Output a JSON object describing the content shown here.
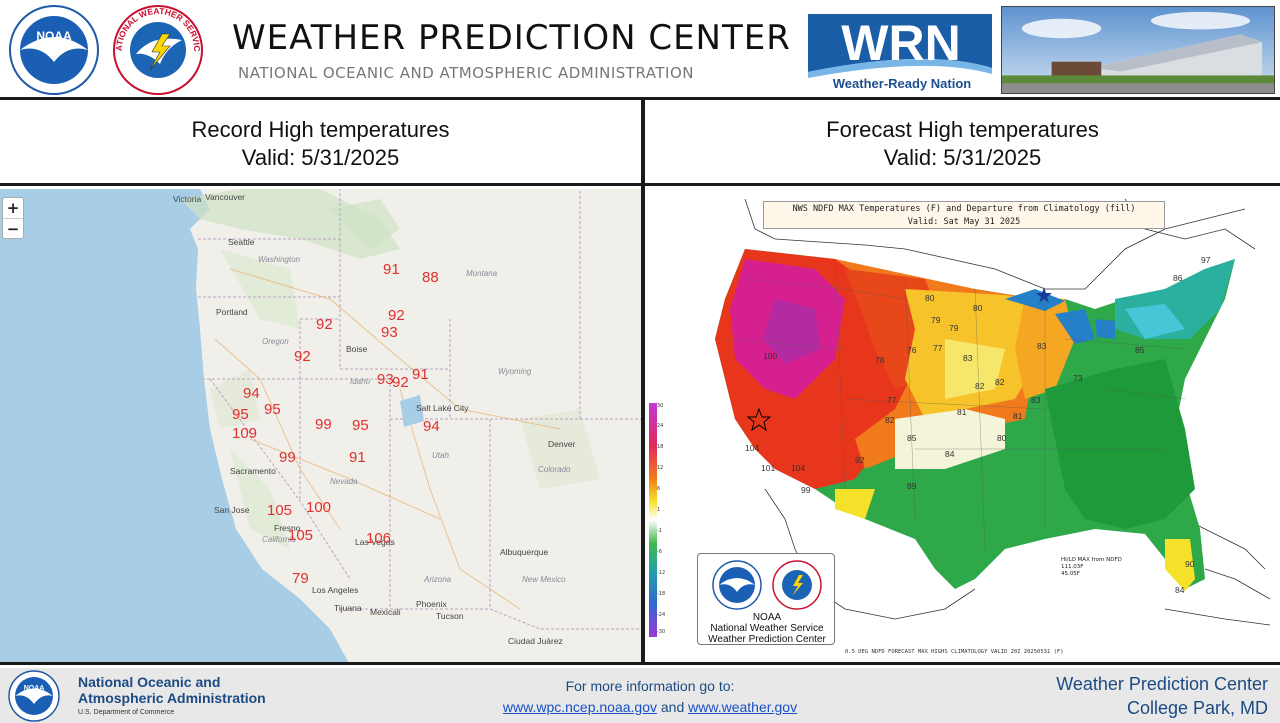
{
  "header": {
    "title": "WEATHER PREDICTION CENTER",
    "subtitle": "NATIONAL OCEANIC AND ATMOSPHERIC ADMINISTRATION",
    "noaa_logo_text": "NOAA",
    "nws_logo_text": "NATIONAL WEATHER SERVICE",
    "wrn_logo_text": "WRN",
    "wrn_tagline": "Weather-Ready Nation"
  },
  "left_panel": {
    "title_line1": "Record High temperatures",
    "title_line2": "Valid: 5/31/2025",
    "zoom_in": "+",
    "zoom_out": "−",
    "records": [
      "91",
      "88",
      "92",
      "92",
      "93",
      "92",
      "93",
      "92",
      "91",
      "94",
      "95",
      "95",
      "109",
      "99",
      "95",
      "94",
      "99",
      "91",
      "105",
      "100",
      "105",
      "106",
      "79"
    ],
    "cities": [
      "Vancouver",
      "Victoria",
      "Seattle",
      "Portland",
      "Boise",
      "Salt Lake City",
      "Denver",
      "Sacramento",
      "San Jose",
      "Fresno",
      "Las Vegas",
      "Los Angeles",
      "Tijuana",
      "Mexicali",
      "Phoenix",
      "Tucson",
      "Albuquerque",
      "Ciudad Juárez"
    ],
    "states": [
      "Washington",
      "Montana",
      "Oregon",
      "Idaho",
      "Wyoming",
      "Nevada",
      "Utah",
      "Colorado",
      "California",
      "Arizona",
      "New Mexico"
    ]
  },
  "right_panel": {
    "title_line1": "Forecast High temperatures",
    "title_line2": "Valid: 5/31/2025",
    "chart_title_line1": "NWS NDFD MAX Temperatures (F) and Departure from Climatology (fill)",
    "chart_title_line2": "Valid: Sat May 31 2025",
    "forecast_values": [
      "80",
      "79",
      "76",
      "77",
      "78",
      "77",
      "83",
      "82",
      "82",
      "81",
      "81",
      "83",
      "79",
      "80",
      "85",
      "82",
      "84",
      "100",
      "104",
      "101",
      "104",
      "99",
      "89",
      "92",
      "86",
      "90",
      "97",
      "85",
      "84",
      "73",
      "80",
      "83"
    ],
    "legend_ticks": [
      "30",
      "24",
      "18",
      "12",
      "6",
      "1",
      "-1",
      "-6",
      "-12",
      "-18",
      "-24",
      "-30"
    ],
    "hilo_title": "HI/LO MAX from NDFD",
    "hilo_hi": "111.03F",
    "hilo_lo": "45.05F",
    "logo_box_line1": "NOAA",
    "logo_box_line2": "National Weather Service",
    "logo_box_line3": "Weather Prediction Center",
    "footer_note": "0.5 DEG NDFD FORECAST MAX HIGHS CLIMATOLOGY VALID 20Z 20250531 (F)",
    "colors": {
      "hot": "#d6208f",
      "warm": "#e8361c",
      "mild": "#f5a623",
      "neutral": "#f4f4a0",
      "cool": "#2fa84a",
      "cold": "#2680c8"
    }
  },
  "footer": {
    "agency_line1": "National Oceanic and",
    "agency_line2": "Atmospheric Administration",
    "agency_line3": "U.S. Department of Commerce",
    "info_text": "For more information go to:",
    "link1": "www.wpc.ncep.noaa.gov",
    "link_join": "and",
    "link2": "www.weather.gov",
    "wpc_line1": "Weather Prediction Center",
    "wpc_line2": "College Park, MD"
  }
}
